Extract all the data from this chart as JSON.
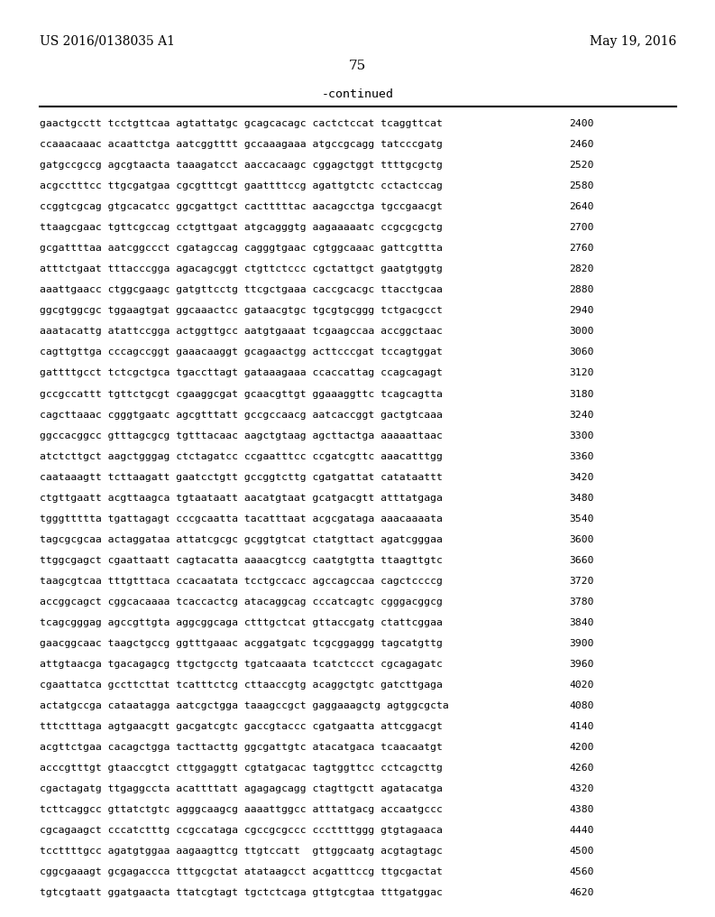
{
  "header_left": "US 2016/0138035 A1",
  "header_right": "May 19, 2016",
  "page_number": "75",
  "continued_label": "-continued",
  "background_color": "#ffffff",
  "text_color": "#000000",
  "font_size": 8.2,
  "header_font_size": 10,
  "page_num_font_size": 11,
  "continued_font_size": 9.5,
  "sequence_lines": [
    [
      "gaactgcctt tcctgttcaa agtattatgc gcagcacagc cactctccat tcaggttcat",
      "2400"
    ],
    [
      "ccaaacaaac acaattctga aatcggtttt gccaaagaaa atgccgcagg tatcccgatg",
      "2460"
    ],
    [
      "gatgccgccg agcgtaacta taaagatcct aaccacaagc cggagctggt ttttgcgctg",
      "2520"
    ],
    [
      "acgcctttcc ttgcgatgaa cgcgtttcgt gaattttccg agattgtctc cctactccag",
      "2580"
    ],
    [
      "ccggtcgcag gtgcacatcc ggcgattgct cactttttac aacagcctga tgccgaacgt",
      "2640"
    ],
    [
      "ttaagcgaac tgttcgccag cctgttgaat atgcagggtg aagaaaaatc ccgcgcgctg",
      "2700"
    ],
    [
      "gcgattttaa aatcggccct cgatagccag cagggtgaac cgtggcaaac gattcgttta",
      "2760"
    ],
    [
      "atttctgaat tttacccgga agacagcggt ctgttctccc cgctattgct gaatgtggtg",
      "2820"
    ],
    [
      "aaattgaacc ctggcgaagc gatgttcctg ttcgctgaaa caccgcacgc ttacctgcaa",
      "2880"
    ],
    [
      "ggcgtggcgc tggaagtgat ggcaaactcc gataacgtgc tgcgtgcggg tctgacgcct",
      "2940"
    ],
    [
      "aaatacattg atattccgga actggttgcc aatgtgaaat tcgaagccaa accggctaac",
      "3000"
    ],
    [
      "cagttgttga cccagccggt gaaacaaggt gcagaactgg acttcccgat tccagtggat",
      "3060"
    ],
    [
      "gattttgcct tctcgctgca tgaccttagt gataaagaaa ccaccattag ccagcagagt",
      "3120"
    ],
    [
      "gccgccattt tgttctgcgt cgaaggcgat gcaacgttgt ggaaaggttc tcagcagtta",
      "3180"
    ],
    [
      "cagcttaaac cgggtgaatc agcgtttatt gccgccaacg aatcaccggt gactgtcaaa",
      "3240"
    ],
    [
      "ggccacggcc gtttagcgcg tgtttacaac aagctgtaag agcttactga aaaaattaac",
      "3300"
    ],
    [
      "atctcttgct aagctgggag ctctagatcc ccgaatttcc ccgatcgttc aaacatttgg",
      "3360"
    ],
    [
      "caataaagtt tcttaagatt gaatcctgtt gccggtcttg cgatgattat catataattt",
      "3420"
    ],
    [
      "ctgttgaatt acgttaagca tgtaataatt aacatgtaat gcatgacgtt atttatgaga",
      "3480"
    ],
    [
      "tgggttttta tgattagagt cccgcaatta tacatttaat acgcgataga aaacaaaata",
      "3540"
    ],
    [
      "tagcgcgcaa actaggataa attatcgcgc gcggtgtcat ctatgttact agatcgggaa",
      "3600"
    ],
    [
      "ttggcgagct cgaattaatt cagtacatta aaaacgtccg caatgtgtta ttaagttgtc",
      "3660"
    ],
    [
      "taagcgtcaa tttgtttaca ccacaatata tcctgccacc agccagccaa cagctccccg",
      "3720"
    ],
    [
      "accggcagct cggcacaaaa tcaccactcg atacaggcag cccatcagtc cgggacggcg",
      "3780"
    ],
    [
      "tcagcgggag agccgttgta aggcggcaga ctttgctcat gttaccgatg ctattcggaa",
      "3840"
    ],
    [
      "gaacggcaac taagctgccg ggtttgaaac acggatgatc tcgcggaggg tagcatgttg",
      "3900"
    ],
    [
      "attgtaacga tgacagagcg ttgctgcctg tgatcaaata tcatctccct cgcagagatc",
      "3960"
    ],
    [
      "cgaattatca gccttcttat tcatttctcg cttaaccgtg acaggctgtc gatcttgaga",
      "4020"
    ],
    [
      "actatgccga cataatagga aatcgctgga taaagccgct gaggaaagctg agtggcgcta",
      "4080"
    ],
    [
      "tttctttaga agtgaacgtt gacgatcgtc gaccgtaccc cgatgaatta attcggacgt",
      "4140"
    ],
    [
      "acgttctgaa cacagctgga tacttacttg ggcgattgtc atacatgaca tcaacaatgt",
      "4200"
    ],
    [
      "acccgtttgt gtaaccgtct cttggaggtt cgtatgacac tagtggttcc cctcagcttg",
      "4260"
    ],
    [
      "cgactagatg ttgaggccta acattttatt agagagcagg ctagttgctt agatacatga",
      "4320"
    ],
    [
      "tcttcaggcc gttatctgtc agggcaagcg aaaattggcc atttatgacg accaatgccc",
      "4380"
    ],
    [
      "cgcagaagct cccatctttg ccgccataga cgccgcgccc cccttttggg gtgtagaaca",
      "4440"
    ],
    [
      "tccttttgcc agatgtggaa aagaagttcg ttgtccatt  gttggcaatg acgtagtagc",
      "4500"
    ],
    [
      "cggcgaaagt gcgagaccca tttgcgctat atataagcct acgatttccg ttgcgactat",
      "4560"
    ],
    [
      "tgtcgtaatt ggatgaacta ttatcgtagt tgctctcaga gttgtcgtaa tttgatggac",
      "4620"
    ]
  ]
}
